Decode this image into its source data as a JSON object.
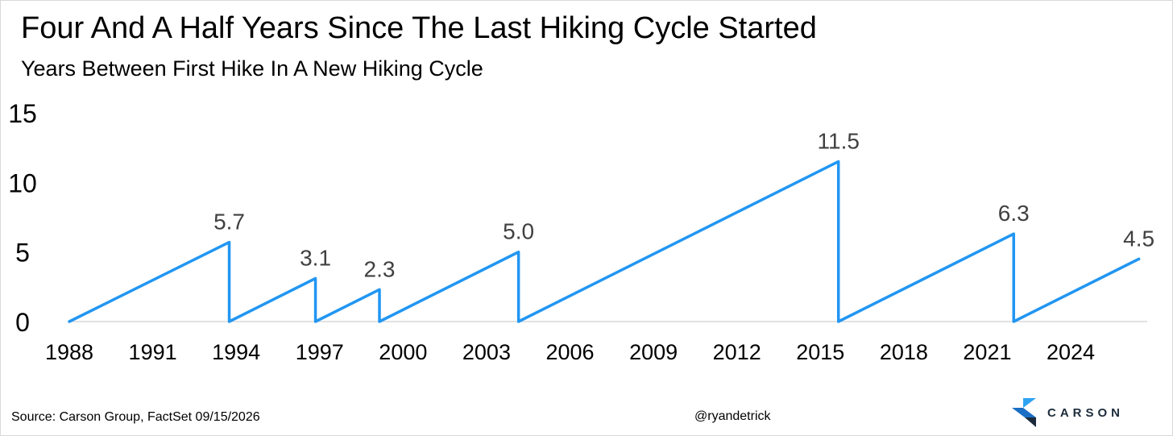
{
  "chart_data": {
    "type": "line",
    "title": "Four And A Half Years Since The Last Hiking Cycle Started",
    "subtitle": "Years Between First Hike In A New Hiking Cycle",
    "xlabel": "",
    "ylabel": "",
    "xlim": [
      1988,
      2026.75
    ],
    "ylim": [
      0,
      15
    ],
    "x_ticks": [
      "1988",
      "1991",
      "1994",
      "1997",
      "2000",
      "2003",
      "2006",
      "2009",
      "2012",
      "2015",
      "2018",
      "2021",
      "2024"
    ],
    "y_ticks": [
      "0",
      "5",
      "10",
      "15"
    ],
    "grid": false,
    "legend": "none",
    "line_color": "#2196f3",
    "series": [
      {
        "x": [
          1988.0,
          1993.75,
          1993.75,
          1996.85,
          1996.85,
          1999.15,
          1999.15,
          2004.15,
          2004.15,
          2015.65,
          2015.65,
          2021.95,
          2021.95,
          2026.45
        ],
        "values": [
          0,
          5.7,
          0,
          3.1,
          0,
          2.3,
          0,
          5.0,
          0,
          11.5,
          0,
          6.3,
          0,
          4.5
        ]
      }
    ],
    "annotations": [
      {
        "x": 1993.75,
        "y": 5.7,
        "text": "5.7"
      },
      {
        "x": 1996.85,
        "y": 3.1,
        "text": "3.1"
      },
      {
        "x": 1999.15,
        "y": 2.3,
        "text": "2.3"
      },
      {
        "x": 2004.15,
        "y": 5.0,
        "text": "5.0"
      },
      {
        "x": 2015.65,
        "y": 11.5,
        "text": "11.5"
      },
      {
        "x": 2021.95,
        "y": 6.3,
        "text": "6.3"
      },
      {
        "x": 2026.45,
        "y": 4.5,
        "text": "4.5"
      }
    ]
  },
  "footer": {
    "source": "Source: Carson Group, FactSet 09/15/2026",
    "handle": "@ryandetrick"
  },
  "logo": {
    "text": "CARSON",
    "colors": [
      "#2ea3f2",
      "#1a6fc4",
      "#1c2b3a"
    ]
  }
}
